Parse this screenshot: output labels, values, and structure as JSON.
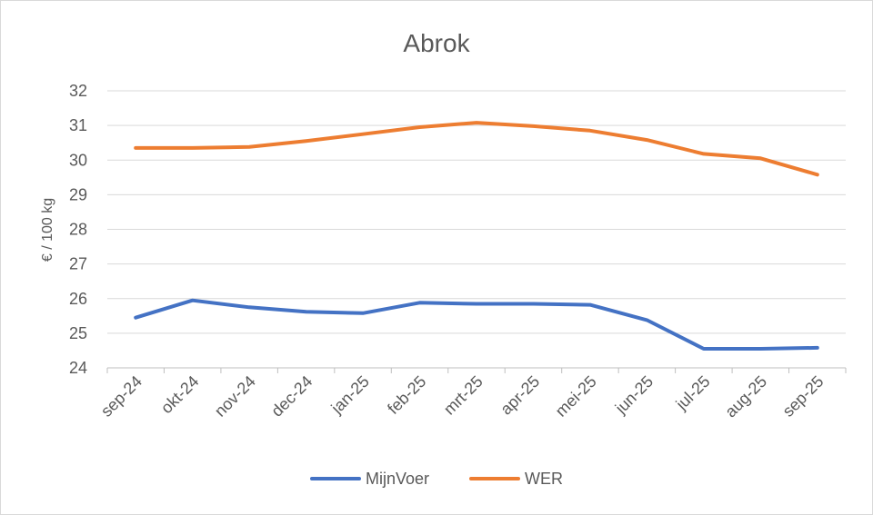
{
  "chart_data": {
    "type": "line",
    "title": "Abrok",
    "xlabel": "",
    "ylabel": "€ / 100 kg",
    "ylim": [
      24,
      32
    ],
    "yticks": [
      24,
      25,
      26,
      27,
      28,
      29,
      30,
      31,
      32
    ],
    "grid": "horizontal",
    "legend": "bottom",
    "categories": [
      "sep-24",
      "okt-24",
      "nov-24",
      "dec-24",
      "jan-25",
      "feb-25",
      "mrt-25",
      "apr-25",
      "mei-25",
      "jun-25",
      "jul-25",
      "aug-25",
      "sep-25"
    ],
    "series": [
      {
        "name": "MijnVoer",
        "color": "#4472c4",
        "values": [
          25.45,
          25.95,
          25.75,
          25.62,
          25.58,
          25.88,
          25.85,
          25.85,
          25.82,
          25.38,
          24.55,
          24.55,
          24.58
        ]
      },
      {
        "name": "WER",
        "color": "#ed7d31",
        "values": [
          30.35,
          30.35,
          30.38,
          30.55,
          30.75,
          30.95,
          31.08,
          30.98,
          30.85,
          30.58,
          30.18,
          30.05,
          29.58
        ]
      }
    ]
  }
}
